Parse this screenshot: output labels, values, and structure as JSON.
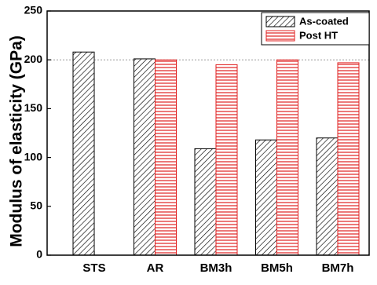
{
  "chart_data": {
    "type": "bar",
    "y_label": "Modulus of elasticity (GPa)",
    "categories": [
      "STS",
      "AR",
      "BM3h",
      "BM5h",
      "BM7h"
    ],
    "series": [
      {
        "name": "As-coated",
        "color": "#000000",
        "hatch": "diagonal",
        "values": [
          208,
          201,
          109,
          118,
          120
        ]
      },
      {
        "name": "Post HT",
        "color": "#e02020",
        "hatch": "horizontal",
        "values": [
          null,
          200,
          195,
          200,
          197
        ]
      }
    ],
    "ylim": [
      0,
      250
    ],
    "yticks": [
      0,
      50,
      100,
      150,
      200,
      250
    ],
    "reference_line": 200,
    "legend": "upper right"
  }
}
